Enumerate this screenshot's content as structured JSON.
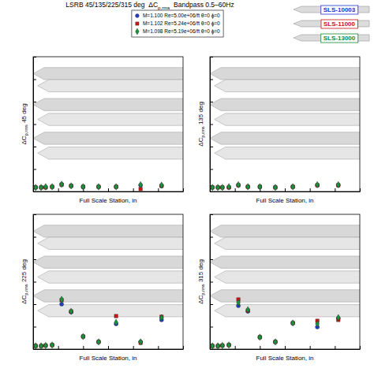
{
  "title": "LSRB 45/135/225/315 deg  ΔCp,rms  Bandpass 0.5–60Hz",
  "configurations": [
    {
      "label": "SLS-10003",
      "color": "#2233cc"
    },
    {
      "label": "SLS-11000",
      "color": "#cc1111"
    },
    {
      "label": "SLS-13000",
      "color": "#118833"
    }
  ],
  "chart_data": [
    {
      "type": "scatter",
      "x_label": "Full Scale Station, in",
      "y_label": "ΔCp,rms 45 deg",
      "x": [
        50,
        160,
        250,
        380,
        570,
        760,
        1000,
        1310,
        1660,
        2150,
        2570
      ],
      "xlim": [
        0,
        3000
      ],
      "xticks": [
        0,
        500,
        1000,
        1500,
        2000,
        2500,
        3000
      ],
      "ylim": [
        0,
        0.06
      ],
      "yticks": [
        0,
        0.01,
        0.02,
        0.03,
        0.04,
        0.05,
        0.06
      ],
      "tick_labels": false,
      "grid": false,
      "legend": "top",
      "series": [
        {
          "name": "M=1.100 Re=5.00e+06/ft θ=0 ϕ=0",
          "color": "#1f3fd0",
          "marker": "circle",
          "values": [
            0.0018,
            0.0018,
            0.0018,
            0.0021,
            0.0032,
            0.0025,
            0.0021,
            0.0021,
            0.0021,
            0.0028,
            0.0025
          ]
        },
        {
          "name": "M=1.102 Re=5.24e+06/ft θ=0 ϕ=0",
          "color": "#d41515",
          "marker": "square",
          "values": [
            0.0018,
            0.0018,
            0.0018,
            0.0021,
            0.003,
            0.0025,
            0.0021,
            0.0021,
            0.0021,
            0.0011,
            0.0025
          ]
        },
        {
          "name": "M=1.098 Re=5.19e+06/ft θ=0 ϕ=0",
          "color": "#17953a",
          "marker": "diamond",
          "values": [
            0.0018,
            0.0018,
            0.0021,
            0.0021,
            0.0032,
            0.0025,
            0.0021,
            0.0021,
            0.0021,
            0.003,
            0.0028
          ]
        }
      ]
    },
    {
      "type": "scatter",
      "x_label": "Full Scale Station, in",
      "y_label": "ΔCp,rms 135 deg",
      "x": [
        50,
        160,
        250,
        380,
        570,
        760,
        1000,
        1310,
        1660,
        2150,
        2570
      ],
      "xlim": [
        0,
        3000
      ],
      "xticks": [
        0,
        500,
        1000,
        1500,
        2000,
        2500,
        3000
      ],
      "ylim": [
        0,
        0.06
      ],
      "yticks": [
        0,
        0.01,
        0.02,
        0.03,
        0.04,
        0.05,
        0.06
      ],
      "tick_labels": false,
      "grid": false,
      "series": [
        {
          "color": "#1f3fd0",
          "marker": "circle",
          "values": [
            0.0018,
            0.0018,
            0.0018,
            0.0018,
            0.0028,
            0.0021,
            0.0021,
            0.0018,
            0.0021,
            0.0028,
            0.0028
          ]
        },
        {
          "color": "#d41515",
          "marker": "square",
          "values": [
            0.0018,
            0.0018,
            0.0018,
            0.0018,
            0.0028,
            0.0021,
            0.0021,
            0.0018,
            0.0021,
            0.0028,
            0.0028
          ]
        },
        {
          "color": "#17953a",
          "marker": "diamond",
          "values": [
            0.0018,
            0.0018,
            0.0018,
            0.0021,
            0.003,
            0.0021,
            0.0021,
            0.0018,
            0.0021,
            0.003,
            0.003
          ]
        }
      ]
    },
    {
      "type": "scatter",
      "x_label": "Full Scale Station, in",
      "y_label": "ΔCp,rms 225 deg",
      "x": [
        50,
        160,
        250,
        380,
        570,
        760,
        1000,
        1310,
        1660,
        2150,
        2570
      ],
      "xlim": [
        0,
        3000
      ],
      "xticks": [
        0,
        500,
        1000,
        1500,
        2000,
        2500,
        3000
      ],
      "ylim": [
        0,
        0.06
      ],
      "yticks": [
        0,
        0.01,
        0.02,
        0.03,
        0.04,
        0.05,
        0.06
      ],
      "tick_labels": false,
      "grid": false,
      "series": [
        {
          "color": "#1f3fd0",
          "marker": "circle",
          "values": [
            0.0014,
            0.0014,
            0.0016,
            0.0018,
            0.02,
            0.0165,
            0.0056,
            0.0032,
            0.0112,
            0.0032,
            0.013
          ]
        },
        {
          "color": "#d41515",
          "marker": "square",
          "values": [
            0.0014,
            0.0014,
            0.0016,
            0.0018,
            0.0218,
            0.0168,
            0.0056,
            0.0032,
            0.0147,
            0.0028,
            0.0144
          ]
        },
        {
          "color": "#17953a",
          "marker": "diamond",
          "values": [
            0.0014,
            0.0014,
            0.0016,
            0.0018,
            0.0221,
            0.0168,
            0.0056,
            0.0032,
            0.0119,
            0.0032,
            0.014
          ]
        }
      ]
    },
    {
      "type": "scatter",
      "x_label": "Full Scale Station, in",
      "y_label": "ΔCp,rms 315 deg",
      "x": [
        50,
        160,
        250,
        380,
        570,
        760,
        1000,
        1310,
        1660,
        2150,
        2570
      ],
      "xlim": [
        0,
        3000
      ],
      "xticks": [
        0,
        500,
        1000,
        1500,
        2000,
        2500,
        3000
      ],
      "ylim": [
        0,
        0.06
      ],
      "yticks": [
        0,
        0.01,
        0.02,
        0.03,
        0.04,
        0.05,
        0.06
      ],
      "tick_labels": false,
      "grid": false,
      "series": [
        {
          "color": "#1f3fd0",
          "marker": "circle",
          "values": [
            0.0014,
            0.0014,
            0.0016,
            0.0018,
            0.0193,
            0.0168,
            0.0053,
            0.0032,
            0.0116,
            0.0098,
            0.0137
          ]
        },
        {
          "color": "#d41515",
          "marker": "square",
          "values": [
            0.0014,
            0.0014,
            0.0016,
            0.0018,
            0.0221,
            0.0172,
            0.0053,
            0.0032,
            0.0116,
            0.0126,
            0.013
          ]
        },
        {
          "color": "#17953a",
          "marker": "diamond",
          "values": [
            0.0014,
            0.0014,
            0.0016,
            0.0018,
            0.0207,
            0.0175,
            0.0053,
            0.0032,
            0.0116,
            0.0112,
            0.014
          ]
        }
      ]
    }
  ]
}
